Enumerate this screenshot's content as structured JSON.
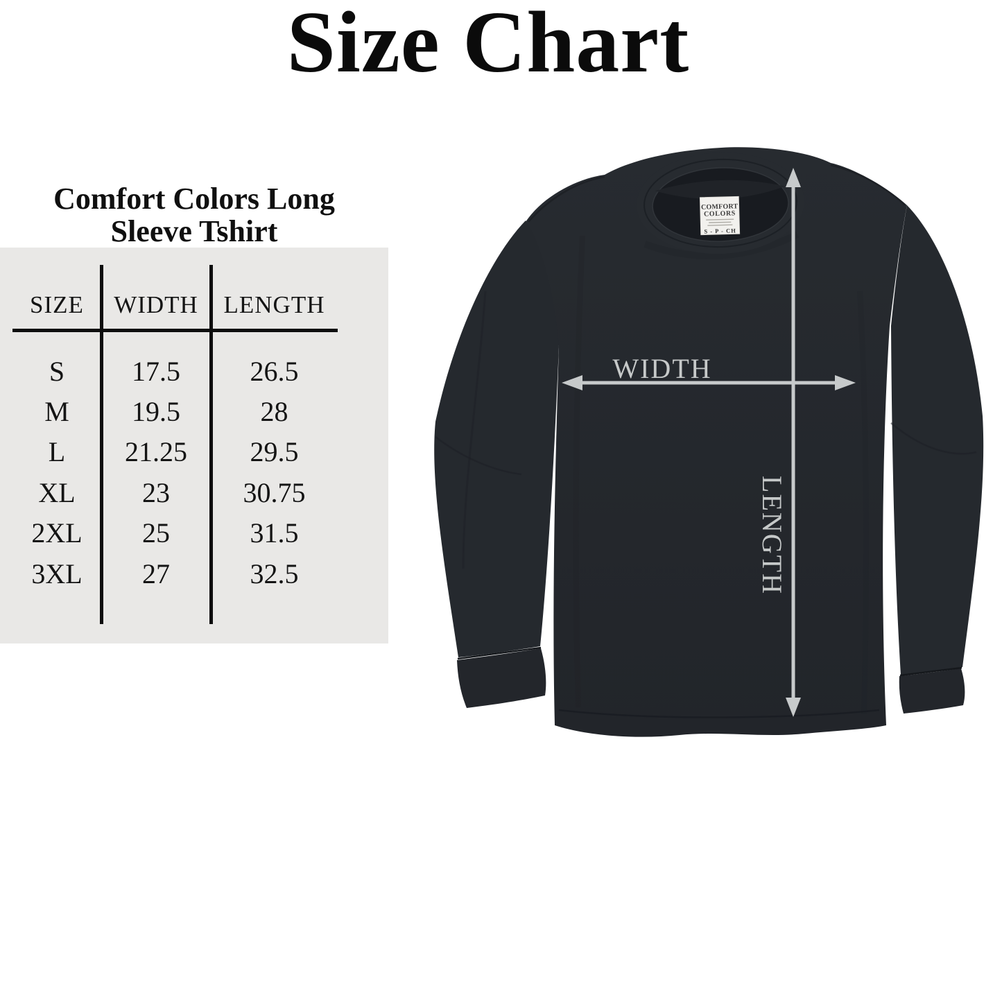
{
  "title": "Size Chart",
  "size_table": {
    "heading_lines": [
      "Comfort Colors Long",
      "Sleeve Tshirt"
    ],
    "columns": [
      "SIZE",
      "WIDTH",
      "LENGTH"
    ],
    "rows": [
      {
        "size": "S",
        "width": "17.5",
        "length": "26.5"
      },
      {
        "size": "M",
        "width": "19.5",
        "length": "28"
      },
      {
        "size": "L",
        "width": "21.25",
        "length": "29.5"
      },
      {
        "size": "XL",
        "width": "23",
        "length": "30.75"
      },
      {
        "size": "2XL",
        "width": "25",
        "length": "31.5"
      },
      {
        "size": "3XL",
        "width": "27",
        "length": "32.5"
      }
    ]
  },
  "shirt": {
    "width_label": "WIDTH",
    "length_label": "LENGTH",
    "neck_label": {
      "brand_line1": "COMFORT",
      "brand_line2": "COLORS",
      "size_code": "S - P - CH"
    }
  },
  "colors": {
    "background": "#ffffff",
    "panel": "#e9e8e6",
    "table_ink": "#0d0d0d",
    "shirt_fabric": "#24282d",
    "shirt_inside": "#181b20",
    "measure_gray": "#c7cacb",
    "neck_label_bg": "#f2f1ee"
  }
}
